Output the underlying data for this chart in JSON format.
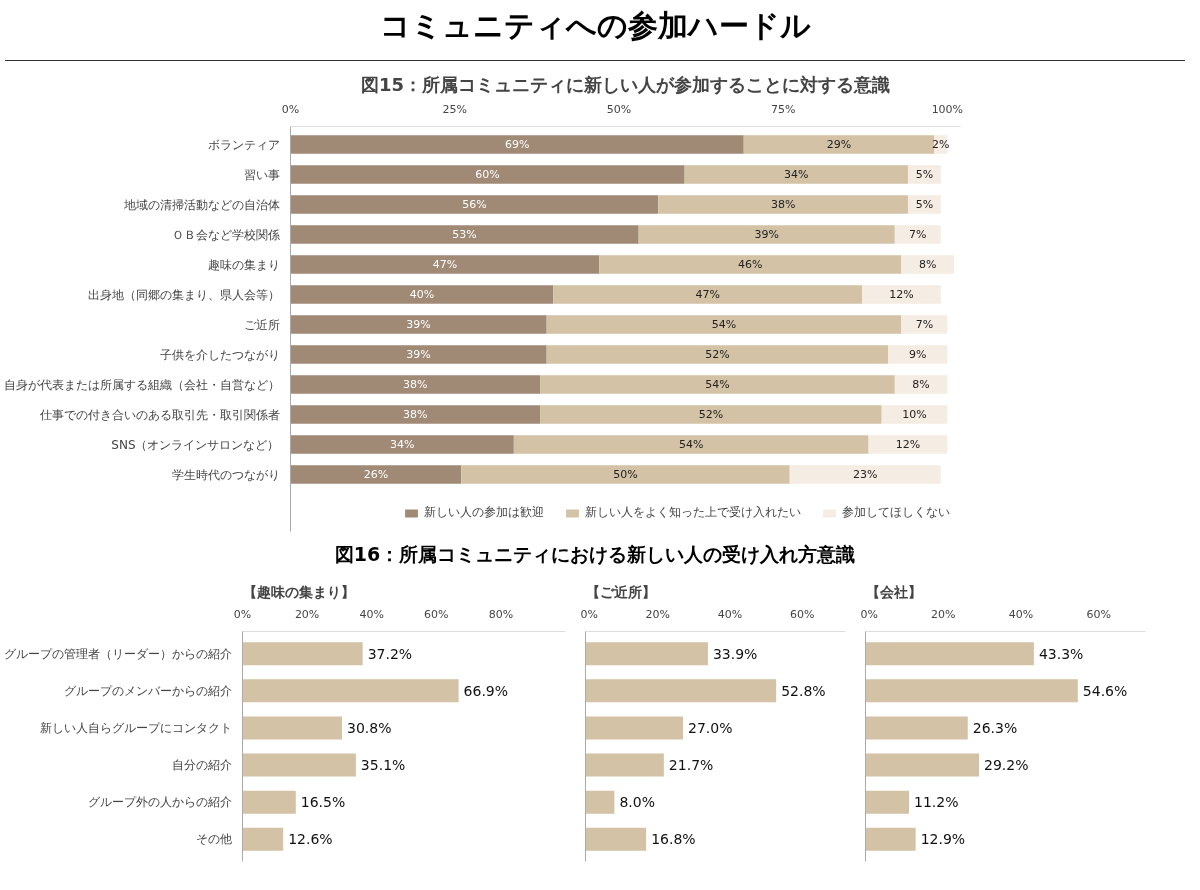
{
  "chart_data": [
    {
      "type": "bar",
      "orientation": "horizontal",
      "stacked": true,
      "title": "コミュニティへの参加ハードル",
      "subtitle": "図15：所属コミュニティに新しい人が参加することに対する意識",
      "categories": [
        "ボランティア",
        "習い事",
        "地域の清掃活動などの自治体",
        "ＯＢ会など学校関係",
        "趣味の集まり",
        "出身地（同郷の集まり、県人会等）",
        "ご近所",
        "子供を介したつながり",
        "自身が代表または所属する組織（会社・自営など）",
        "仕事での付き合いのある取引先・取引関係者",
        "SNS（オンラインサロンなど）",
        "学生時代のつながり"
      ],
      "series": [
        {
          "name": "新しい人の参加は歓迎",
          "color": "#a08a76",
          "values": [
            69,
            60,
            56,
            53,
            47,
            40,
            39,
            39,
            38,
            38,
            34,
            26
          ],
          "value_labels": [
            "69%",
            "60%",
            "56%",
            "53%",
            "47%",
            "40%",
            "39%",
            "39%",
            "38%",
            "38%",
            "34%",
            "26%"
          ]
        },
        {
          "name": "新しい人をよく知った上で受け入れたい",
          "color": "#d3c2a5",
          "values": [
            29,
            34,
            38,
            39,
            46,
            47,
            54,
            52,
            54,
            52,
            54,
            50
          ],
          "value_labels": [
            "29%",
            "34%",
            "38%",
            "39%",
            "46%",
            "47%",
            "54%",
            "52%",
            "54%",
            "52%",
            "54%",
            "50%"
          ]
        },
        {
          "name": "参加してほしくない",
          "color": "#f5ece3",
          "values": [
            2,
            5,
            5,
            7,
            8,
            12,
            7,
            9,
            8,
            10,
            12,
            23
          ],
          "value_labels": [
            "2%",
            "5%",
            "5%",
            "7%",
            "8%",
            "12%",
            "7%",
            "9%",
            "8%",
            "10%",
            "12%",
            "23%"
          ]
        }
      ],
      "xlim": [
        0,
        102
      ],
      "xticks": [
        {
          "value": 0,
          "label": "0%"
        },
        {
          "value": 25,
          "label": "25%"
        },
        {
          "value": 50,
          "label": "50%"
        },
        {
          "value": 75,
          "label": "75%"
        },
        {
          "value": 100,
          "label": "100%"
        }
      ],
      "legend": "bottom",
      "grid": false
    },
    {
      "type": "bar",
      "orientation": "horizontal",
      "title": "図16：所属コミュニティにおける新しい人の受け入れ方意識",
      "subtitle": "【趣味の集まり】",
      "categories": [
        "グループの管理者（リーダー）からの紹介",
        "グループのメンバーからの紹介",
        "新しい人自らグループにコンタクト",
        "自分の紹介",
        "グループ外の人からの紹介",
        "その他"
      ],
      "series": [
        {
          "color": "#d3c2a5",
          "values": [
            37.2,
            66.9,
            30.8,
            35.1,
            16.5,
            12.6
          ],
          "value_labels": [
            "37.2%",
            "66.9%",
            "30.8%",
            "35.1%",
            "16.5%",
            "12.6%"
          ]
        }
      ],
      "xlim": [
        0,
        100
      ],
      "xticks": [
        {
          "value": 0,
          "label": "0%"
        },
        {
          "value": 20,
          "label": "20%"
        },
        {
          "value": 40,
          "label": "40%"
        },
        {
          "value": 60,
          "label": "60%"
        },
        {
          "value": 80,
          "label": "80%"
        }
      ],
      "grid": false
    },
    {
      "type": "bar",
      "orientation": "horizontal",
      "title": "【ご近所】",
      "categories": [
        null,
        null,
        null,
        null,
        null,
        null
      ],
      "series": [
        {
          "color": "#d3c2a5",
          "values": [
            33.9,
            52.8,
            27.0,
            21.7,
            8.0,
            16.8
          ],
          "value_labels": [
            "33.9%",
            "52.8%",
            "27.0%",
            "21.7%",
            "8.0%",
            "16.8%"
          ]
        }
      ],
      "xlim": [
        0,
        72
      ],
      "xticks": [
        {
          "value": 0,
          "label": "0%"
        },
        {
          "value": 20,
          "label": "20%"
        },
        {
          "value": 40,
          "label": "40%"
        },
        {
          "value": 60,
          "label": "60%"
        }
      ],
      "grid": false,
      "tick_labels": "x"
    },
    {
      "type": "bar",
      "orientation": "horizontal",
      "title": "【会社】",
      "categories": [
        null,
        null,
        null,
        null,
        null,
        null
      ],
      "series": [
        {
          "color": "#d3c2a5",
          "values": [
            43.3,
            54.6,
            26.3,
            29.2,
            11.2,
            12.9
          ],
          "value_labels": [
            "43.3%",
            "54.6%",
            "26.3%",
            "29.2%",
            "11.2%",
            "12.9%"
          ]
        }
      ],
      "xlim": [
        0,
        72
      ],
      "xticks": [
        {
          "value": 0,
          "label": "0%"
        },
        {
          "value": 20,
          "label": "20%"
        },
        {
          "value": 40,
          "label": "40%"
        },
        {
          "value": 60,
          "label": "60%"
        }
      ],
      "grid": false,
      "tick_labels": "x"
    }
  ]
}
